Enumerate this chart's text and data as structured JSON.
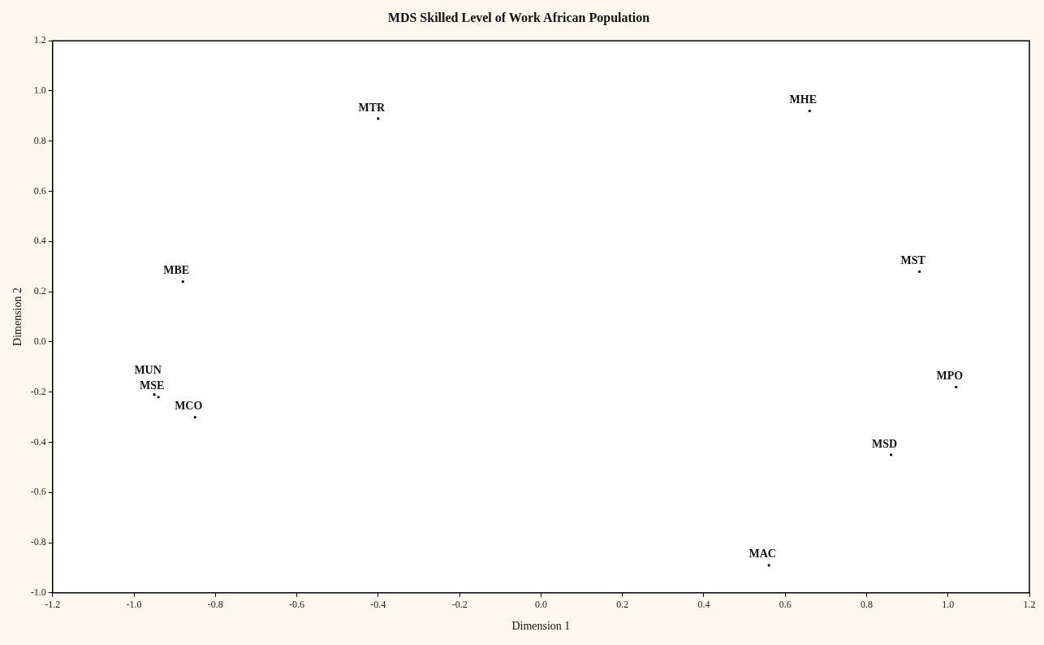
{
  "chart_data": {
    "type": "scatter",
    "title": "MDS Skilled Level of Work African Population",
    "xlabel": "Dimension 1",
    "ylabel": "Dimension 2",
    "xlim": [
      -1.2,
      1.2
    ],
    "xticks": [
      {
        "value": -1.2,
        "label": "-1.2"
      },
      {
        "value": -1.0,
        "label": "-1.0"
      },
      {
        "value": -0.8,
        "label": "-0.8"
      },
      {
        "value": -0.6,
        "label": "-0.6"
      },
      {
        "value": -0.4,
        "label": "-0.4"
      },
      {
        "value": -0.2,
        "label": "-0.2"
      },
      {
        "value": 0,
        "label": "0.0"
      },
      {
        "value": 0.2,
        "label": "0.2"
      },
      {
        "value": 0.4,
        "label": "0.4"
      },
      {
        "value": 0.6,
        "label": "0.6"
      },
      {
        "value": 0.8,
        "label": "0.8"
      },
      {
        "value": 1.0,
        "label": "1.0"
      },
      {
        "value": 1.2,
        "label": "1.2"
      }
    ],
    "ylim": [
      -1.0,
      1.2
    ],
    "yticks": [
      {
        "value": -1.0,
        "label": "-1.0"
      },
      {
        "value": -0.8,
        "label": "-0.8"
      },
      {
        "value": -0.6,
        "label": "-0.6"
      },
      {
        "value": -0.4,
        "label": "-0.4"
      },
      {
        "value": -0.2,
        "label": "-0.2"
      },
      {
        "value": 0,
        "label": "0.0"
      },
      {
        "value": 0.2,
        "label": "0.2"
      },
      {
        "value": 0.4,
        "label": "0.4"
      },
      {
        "value": 0.6,
        "label": "0.6"
      },
      {
        "value": 0.8,
        "label": "0.8"
      },
      {
        "value": 1.0,
        "label": "1.0"
      },
      {
        "value": 1.2,
        "label": "1.2"
      }
    ],
    "grid": false,
    "legend": false,
    "marker": "square",
    "series": [
      {
        "name": "MTR",
        "color": "#000000",
        "x": [
          -0.4
        ],
        "values": [
          0.89
        ]
      },
      {
        "name": "MHE",
        "color": "#000000",
        "x": [
          0.66
        ],
        "values": [
          0.92
        ]
      },
      {
        "name": "MBE",
        "color": "#000000",
        "x": [
          -0.88
        ],
        "values": [
          0.24
        ]
      },
      {
        "name": "MST",
        "color": "#000000",
        "x": [
          0.93
        ],
        "values": [
          0.28
        ]
      },
      {
        "name": "MPO",
        "color": "#000000",
        "x": [
          1.02
        ],
        "values": [
          -0.18
        ]
      },
      {
        "name": "MUN",
        "color": "#000000",
        "x": [
          -0.95
        ],
        "values": [
          -0.21
        ]
      },
      {
        "name": "MSE",
        "color": "#000000",
        "x": [
          -0.94
        ],
        "values": [
          -0.22
        ]
      },
      {
        "name": "MCO",
        "color": "#000000",
        "x": [
          -0.85
        ],
        "values": [
          -0.3
        ]
      },
      {
        "name": "MSD",
        "color": "#000000",
        "x": [
          0.86
        ],
        "values": [
          -0.45
        ]
      },
      {
        "name": "MAC",
        "color": "#000000",
        "x": [
          0.56
        ],
        "values": [
          -0.89
        ]
      }
    ]
  }
}
